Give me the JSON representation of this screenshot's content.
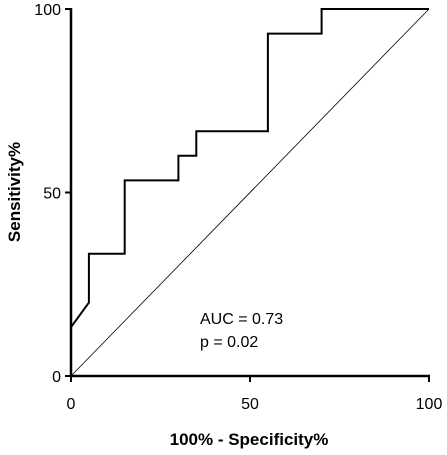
{
  "chart_data": {
    "type": "line",
    "title": "",
    "xlabel": "100% - Specificity%",
    "ylabel": "Sensitivity%",
    "xlim": [
      0,
      100
    ],
    "ylim": [
      0,
      100
    ],
    "x_ticks": [
      "0",
      "50",
      "100"
    ],
    "y_ticks": [
      "0",
      "50",
      "100"
    ],
    "grid": false,
    "series": [
      {
        "type": "step",
        "x": [
          0,
          0,
          5,
          5,
          15,
          15,
          30,
          30,
          35,
          35,
          55,
          55,
          70,
          70,
          100
        ],
        "y": [
          0,
          13.3,
          20,
          33.3,
          33.3,
          53.3,
          53.3,
          60,
          60,
          66.7,
          66.7,
          93.3,
          93.3,
          100,
          100
        ]
      },
      {
        "type": "reference",
        "x": [
          0,
          100
        ],
        "y": [
          0,
          100
        ]
      }
    ],
    "annotations": [
      "AUC = 0.73",
      "p = 0.02"
    ]
  }
}
